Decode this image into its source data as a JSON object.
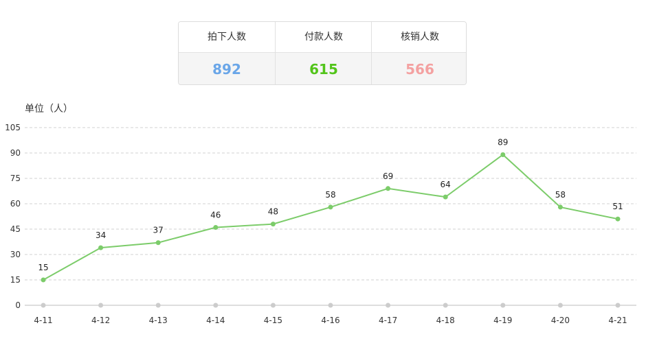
{
  "stats": [
    {
      "label": "拍下人数",
      "value": "892",
      "color": "#6aa6e8"
    },
    {
      "label": "付款人数",
      "value": "615",
      "color": "#52c41a"
    },
    {
      "label": "核销人数",
      "value": "566",
      "color": "#f4a1a1"
    }
  ],
  "chart_data": {
    "type": "line",
    "ylabel": "单位（人）",
    "categories": [
      "4-11",
      "4-12",
      "4-13",
      "4-14",
      "4-15",
      "4-16",
      "4-17",
      "4-18",
      "4-19",
      "4-20",
      "4-21"
    ],
    "values": [
      15,
      34,
      37,
      46,
      48,
      58,
      69,
      64,
      89,
      58,
      51
    ],
    "ylim": [
      0,
      105
    ],
    "yticks": [
      0,
      15,
      30,
      45,
      60,
      75,
      90,
      105
    ],
    "line_color": "#7ccc6a",
    "grid": true
  }
}
